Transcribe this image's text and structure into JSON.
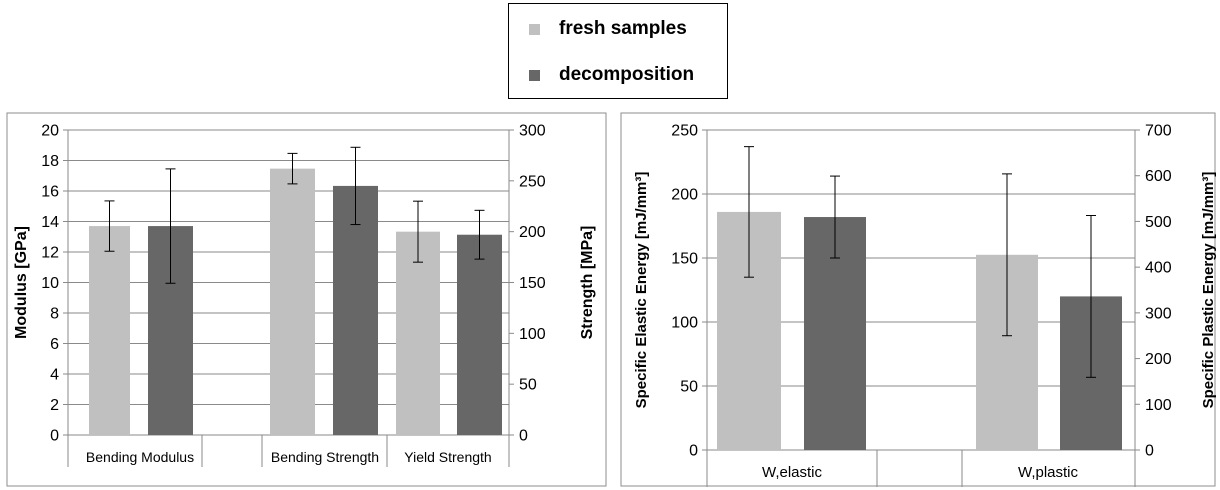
{
  "legend": {
    "items": [
      {
        "label": "fresh samples",
        "color": "#c0c0c0"
      },
      {
        "label": "decomposition",
        "color": "#676767"
      }
    ]
  },
  "chart_data": [
    {
      "type": "bar",
      "title": "",
      "ylabel": "Modulus [GPa]",
      "ylabel_right": "Strength [MPa]",
      "ylim": [
        0,
        20
      ],
      "ylim_right": [
        0,
        300
      ],
      "yticks": [
        0,
        2,
        4,
        6,
        8,
        10,
        12,
        14,
        16,
        18,
        20
      ],
      "yticks_right": [
        0,
        50,
        100,
        150,
        200,
        250,
        300
      ],
      "grid": true,
      "categories": [
        "Bending Modulus",
        "Bending Strength",
        "Yield Strength"
      ],
      "category_axis": [
        "left",
        "right",
        "right"
      ],
      "series": [
        {
          "name": "fresh samples",
          "color": "#c0c0c0",
          "values": [
            13.7,
            262,
            200
          ],
          "errors": [
            1.65,
            15,
            30
          ]
        },
        {
          "name": "decomposition",
          "color": "#676767",
          "values": [
            13.7,
            245,
            197
          ],
          "errors": [
            3.75,
            38,
            24
          ]
        }
      ]
    },
    {
      "type": "bar",
      "title": "",
      "ylabel": "Specific Elastic Energy [mJ/mm³]",
      "ylabel_right": "Specific Plastic Energy [mJ/mm³]",
      "ylim": [
        0,
        250
      ],
      "ylim_right": [
        0,
        700
      ],
      "yticks": [
        0,
        50,
        100,
        150,
        200,
        250
      ],
      "yticks_right": [
        0,
        100,
        200,
        300,
        400,
        500,
        600,
        700
      ],
      "grid": true,
      "categories": [
        "W,elastic",
        "W,plastic"
      ],
      "category_axis": [
        "left",
        "right"
      ],
      "series": [
        {
          "name": "fresh samples",
          "color": "#c0c0c0",
          "values": [
            186,
            427
          ],
          "errors": [
            51,
            177
          ]
        },
        {
          "name": "decomposition",
          "color": "#676767",
          "values": [
            182,
            336
          ],
          "errors": [
            32,
            177
          ]
        }
      ]
    }
  ]
}
